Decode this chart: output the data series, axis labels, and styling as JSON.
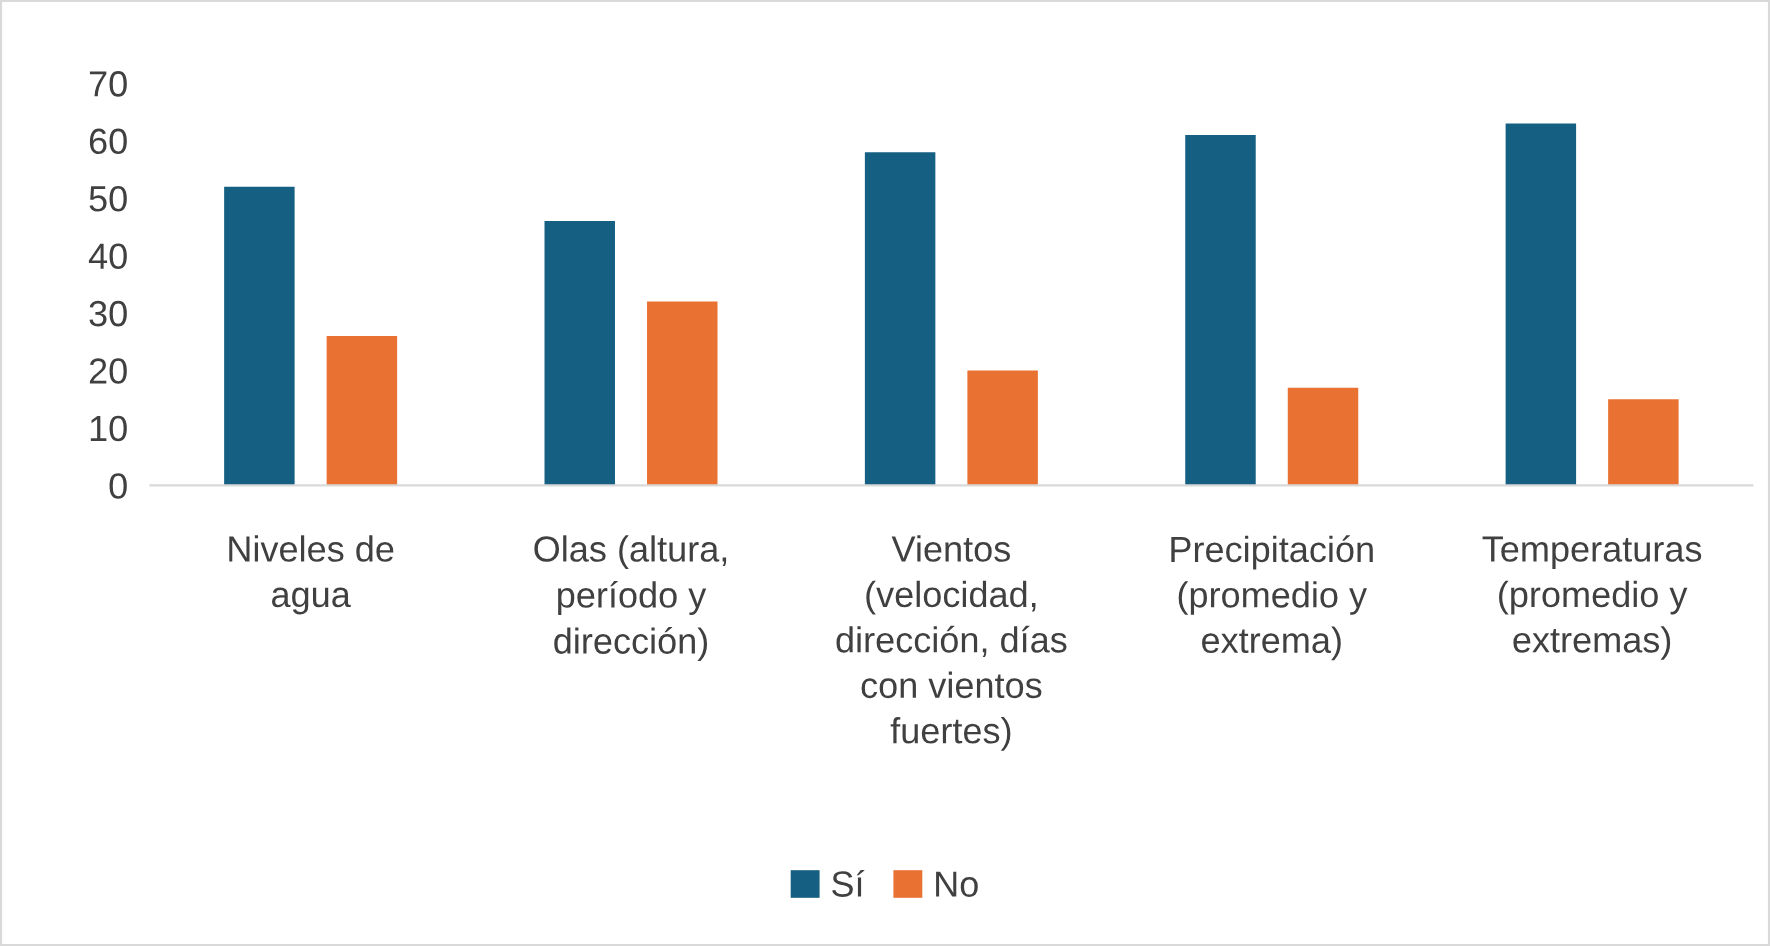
{
  "chart_data": {
    "type": "bar",
    "categories": [
      "Niveles de\nagua",
      "Olas (altura,\nperíodo y\ndirección)",
      "Vientos\n(velocidad,\ndirección, días\ncon vientos\nfuertes)",
      "Precipitación\n(promedio y\nextrema)",
      "Temperaturas\n(promedio y\nextremas)"
    ],
    "series": [
      {
        "name": "Sí",
        "color": "#156082",
        "values": [
          52,
          46,
          58,
          61,
          63
        ]
      },
      {
        "name": "No",
        "color": "#e97132",
        "values": [
          26,
          32,
          20,
          17,
          15
        ]
      }
    ],
    "ylim": [
      0,
      70
    ],
    "yticks": [
      0,
      10,
      20,
      30,
      40,
      50,
      60,
      70
    ],
    "grid": false,
    "legend": "bottom"
  }
}
